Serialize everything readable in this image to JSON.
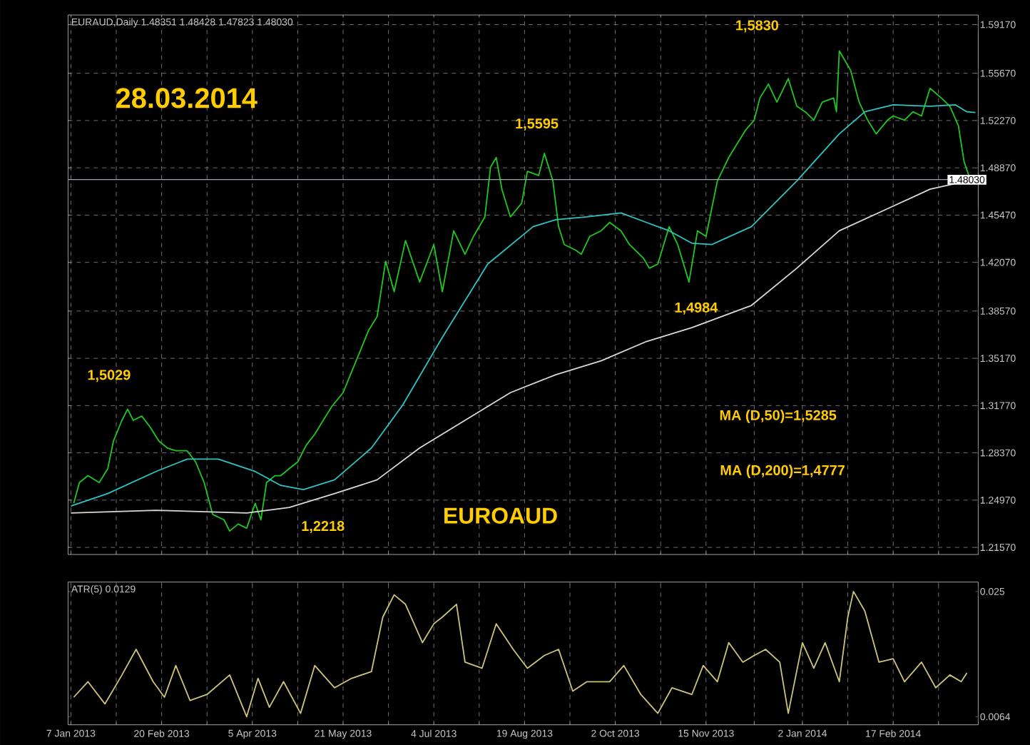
{
  "chart_data": [
    {
      "type": "line",
      "title": "EURAUD,Daily  1.48351 1.48428 1.47823 1.48030",
      "series": [
        {
          "color": "#1ec81e",
          "x": [
            "2013-01-08",
            "2013-01-10",
            "2013-01-15",
            "2013-01-21",
            "2013-01-24",
            "2013-01-28",
            "2013-01-31",
            "2013-02-04",
            "2013-02-06",
            "2013-02-11",
            "2013-02-14",
            "2013-02-19",
            "2013-02-22",
            "2013-02-27",
            "2013-03-05",
            "2013-03-08",
            "2013-03-13",
            "2013-03-18",
            "2013-03-22",
            "2013-03-26",
            "2013-03-29",
            "2013-04-03",
            "2013-04-08",
            "2013-04-10",
            "2013-04-12",
            "2013-04-17",
            "2013-04-19",
            "2013-04-24",
            "2013-04-29",
            "2013-05-02",
            "2013-05-07",
            "2013-05-10",
            "2013-05-15",
            "2013-05-21",
            "2013-05-24",
            "2013-05-29",
            "2013-06-03",
            "2013-06-06",
            "2013-06-11",
            "2013-06-14",
            "2013-06-20",
            "2013-06-27",
            "2013-07-04",
            "2013-07-09",
            "2013-07-15",
            "2013-07-19",
            "2013-07-24",
            "2013-07-30",
            "2013-08-01",
            "2013-08-05",
            "2013-08-07",
            "2013-08-12",
            "2013-08-16",
            "2013-08-20",
            "2013-08-26",
            "2013-08-28",
            "2013-09-02",
            "2013-09-04",
            "2013-09-06",
            "2013-09-12",
            "2013-09-16",
            "2013-09-19",
            "2013-09-25",
            "2013-09-30",
            "2013-10-04",
            "2013-10-09",
            "2013-10-16",
            "2013-10-18",
            "2013-10-23",
            "2013-10-29",
            "2013-11-01",
            "2013-11-07",
            "2013-11-12",
            "2013-11-15",
            "2013-11-21",
            "2013-11-27",
            "2013-12-02",
            "2013-12-05",
            "2013-12-10",
            "2013-12-12",
            "2013-12-17",
            "2013-12-20",
            "2013-12-26",
            "2013-12-31",
            "2014-01-03",
            "2014-01-08",
            "2014-01-13",
            "2014-01-17",
            "2014-01-20",
            "2014-01-21",
            "2014-01-27",
            "2014-01-30",
            "2014-02-04",
            "2014-02-07",
            "2014-02-13",
            "2014-02-17",
            "2014-02-21",
            "2014-02-26",
            "2014-03-03",
            "2014-03-06",
            "2014-03-12",
            "2014-03-17",
            "2014-03-20",
            "2014-03-24",
            "2014-03-26",
            "2014-03-28"
          ],
          "values": [
            1.2474,
            1.2623,
            1.2673,
            1.2623,
            1.2723,
            1.2922,
            1.3071,
            1.3151,
            1.3071,
            1.3101,
            1.3021,
            1.2922,
            1.2872,
            1.2852,
            1.2852,
            1.2772,
            1.2623,
            1.2394,
            1.2355,
            1.2275,
            1.2325,
            1.2295,
            1.2474,
            1.2355,
            1.2623,
            1.2673,
            1.2673,
            1.2723,
            1.2772,
            1.2892,
            1.2971,
            1.3071,
            1.317,
            1.327,
            1.3419,
            1.3568,
            1.3718,
            1.3817,
            1.4215,
            1.3996,
            1.4364,
            1.4066,
            1.4335,
            1.3996,
            1.4434,
            1.4265,
            1.4394,
            1.4534,
            1.4892,
            1.4961,
            1.4733,
            1.4534,
            1.4633,
            1.4862,
            1.4832,
            1.4991,
            1.4792,
            1.4464,
            1.4335,
            1.4295,
            1.4265,
            1.4394,
            1.4434,
            1.4494,
            1.4434,
            1.4335,
            1.4235,
            1.4165,
            1.4195,
            1.4464,
            1.4335,
            1.4066,
            1.4434,
            1.4394,
            1.4792,
            1.4961,
            1.5061,
            1.516,
            1.523,
            1.5389,
            1.5489,
            1.5359,
            1.5529,
            1.533,
            1.529,
            1.523,
            1.5359,
            1.5389,
            1.529,
            1.5728,
            1.5588,
            1.5359,
            1.523,
            1.5131,
            1.523,
            1.526,
            1.523,
            1.529,
            1.526,
            1.5459,
            1.5389,
            1.533,
            1.519,
            1.4932,
            1.4812,
            1.4803
          ]
        },
        {
          "color": "#2ec4c4",
          "x": [
            "2013-01-07",
            "2013-01-24",
            "2013-02-18",
            "2013-03-05",
            "2013-03-20",
            "2013-04-08",
            "2013-04-19",
            "2013-05-01",
            "2013-05-16",
            "2013-06-04",
            "2013-06-19",
            "2013-07-09",
            "2013-07-31",
            "2013-08-22",
            "2013-09-03",
            "2013-09-18",
            "2013-10-04",
            "2013-10-17",
            "2013-10-29",
            "2013-11-08",
            "2013-11-19",
            "2013-12-09",
            "2013-12-31",
            "2014-01-21",
            "2014-02-03",
            "2014-02-17",
            "2014-03-06",
            "2014-03-19",
            "2014-03-25",
            "2014-03-28"
          ],
          "values": [
            1.2454,
            1.2544,
            1.2703,
            1.2792,
            1.2792,
            1.2703,
            1.2603,
            1.2573,
            1.2643,
            1.2872,
            1.318,
            1.3668,
            1.4195,
            1.4464,
            1.4514,
            1.4534,
            1.4563,
            1.4494,
            1.4434,
            1.4345,
            1.4335,
            1.4464,
            1.4792,
            1.5131,
            1.529,
            1.534,
            1.533,
            1.534,
            1.529,
            1.5285
          ]
        },
        {
          "color": "#d8d8d8",
          "x": [
            "2013-01-07",
            "2013-02-18",
            "2013-04-03",
            "2013-04-24",
            "2013-05-16",
            "2013-06-06",
            "2013-06-27",
            "2013-07-19",
            "2013-08-12",
            "2013-09-03",
            "2013-09-25",
            "2013-10-17",
            "2013-11-08",
            "2013-12-09",
            "2013-12-31",
            "2014-01-21",
            "2014-02-13",
            "2014-03-06",
            "2014-03-25",
            "2014-03-28"
          ],
          "values": [
            1.2404,
            1.2424,
            1.2404,
            1.2444,
            1.2544,
            1.2643,
            1.2872,
            1.3071,
            1.327,
            1.3399,
            1.3499,
            1.3638,
            1.3738,
            1.3897,
            1.4165,
            1.4434,
            1.4593,
            1.4733,
            1.4792,
            1.4777
          ]
        }
      ],
      "xlim": [
        "2013-01-04",
        "2014-03-31"
      ],
      "xticks": [
        {
          "value": "2013-01-07",
          "label": null
        },
        {
          "value": "2013-01-29",
          "label": null
        },
        {
          "value": "2013-02-20",
          "label": null
        },
        {
          "value": "2013-03-14",
          "label": null
        },
        {
          "value": "2013-04-05",
          "label": null
        },
        {
          "value": "2013-04-29",
          "label": null
        },
        {
          "value": "2013-05-21",
          "label": null
        },
        {
          "value": "2013-06-12",
          "label": null
        },
        {
          "value": "2013-07-04",
          "label": null
        },
        {
          "value": "2013-07-26",
          "label": null
        },
        {
          "value": "2013-08-19",
          "label": null
        },
        {
          "value": "2013-09-10",
          "label": null
        },
        {
          "value": "2013-10-02",
          "label": null
        },
        {
          "value": "2013-10-24",
          "label": null
        },
        {
          "value": "2013-11-15",
          "label": null
        },
        {
          "value": "2013-12-10",
          "label": null
        },
        {
          "value": "2014-01-02",
          "label": null
        },
        {
          "value": "2014-01-24",
          "label": null
        },
        {
          "value": "2014-02-17",
          "label": null
        },
        {
          "value": "2014-03-11",
          "label": null
        }
      ],
      "ylim": [
        1.2106,
        1.5986
      ],
      "yticks": [
        {
          "value": 1.2157,
          "label": "1.21570"
        },
        {
          "value": 1.2497,
          "label": "1.24970"
        },
        {
          "value": 1.2837,
          "label": "1.28370"
        },
        {
          "value": 1.3177,
          "label": "1.31770"
        },
        {
          "value": 1.3517,
          "label": "1.35170"
        },
        {
          "value": 1.3857,
          "label": "1.38570"
        },
        {
          "value": 1.4207,
          "label": "1.42070"
        },
        {
          "value": 1.4547,
          "label": "1.45470"
        },
        {
          "value": 1.4887,
          "label": "1.48870"
        },
        {
          "value": 1.5227,
          "label": "1.52270"
        },
        {
          "value": 1.5567,
          "label": "1.55670"
        },
        {
          "value": 1.5917,
          "label": "1.59170"
        }
      ],
      "ref_lines": [
        {
          "axis": "y",
          "value": 1.4803,
          "label": "1.48030",
          "color": "#9aa6b0"
        }
      ],
      "annotations": [
        "28.03.2014",
        "1,5029",
        "1,2218",
        "1,5595",
        "1,4984",
        "1,5830",
        "EUROAUD",
        "MA (D,50)=1,5285",
        "MA (D,200)=1,4777"
      ],
      "grid": true,
      "tick_labels": "y",
      "line_style": "solid"
    },
    {
      "type": "line",
      "title": "ATR(5) 0.0129",
      "series": [
        {
          "color": "#cdc47c",
          "x": [
            "2013-01-08",
            "2013-01-15",
            "2013-01-23",
            "2013-01-31",
            "2013-02-07",
            "2013-02-15",
            "2013-02-21",
            "2013-02-27",
            "2013-03-06",
            "2013-03-14",
            "2013-03-26",
            "2013-04-03",
            "2013-04-09",
            "2013-04-15",
            "2013-04-22",
            "2013-04-30",
            "2013-05-07",
            "2013-05-16",
            "2013-05-24",
            "2013-06-04",
            "2013-06-10",
            "2013-06-14",
            "2013-06-20",
            "2013-06-28",
            "2013-07-04",
            "2013-07-09",
            "2013-07-16",
            "2013-07-19",
            "2013-07-29",
            "2013-08-05",
            "2013-08-13",
            "2013-08-20",
            "2013-08-28",
            "2013-09-04",
            "2013-09-11",
            "2013-09-18",
            "2013-09-30",
            "2013-10-07",
            "2013-10-15",
            "2013-10-23",
            "2013-10-30",
            "2013-11-08",
            "2013-11-14",
            "2013-11-21",
            "2013-11-27",
            "2013-12-04",
            "2013-12-10",
            "2013-12-16",
            "2013-12-23",
            "2013-12-26",
            "2014-01-02",
            "2014-01-08",
            "2014-01-14",
            "2014-01-21",
            "2014-01-24",
            "2014-01-28",
            "2014-02-03",
            "2014-02-10",
            "2014-02-17",
            "2014-02-21",
            "2014-03-03",
            "2014-03-10",
            "2014-03-17",
            "2014-03-21",
            "2014-03-25"
          ],
          "values": [
            0.0093,
            0.0116,
            0.0083,
            0.0126,
            0.0164,
            0.0116,
            0.0093,
            0.014,
            0.0088,
            0.0097,
            0.0126,
            0.0064,
            0.0121,
            0.0078,
            0.0116,
            0.0069,
            0.014,
            0.0107,
            0.0121,
            0.0131,
            0.0212,
            0.0245,
            0.0231,
            0.0174,
            0.0202,
            0.0212,
            0.0231,
            0.0145,
            0.0136,
            0.0202,
            0.0164,
            0.0136,
            0.0155,
            0.0164,
            0.0102,
            0.0116,
            0.0116,
            0.014,
            0.0097,
            0.0069,
            0.0107,
            0.0097,
            0.014,
            0.0116,
            0.0174,
            0.0145,
            0.0155,
            0.0164,
            0.0145,
            0.0069,
            0.0174,
            0.0136,
            0.0174,
            0.0116,
            0.0212,
            0.025,
            0.0221,
            0.0145,
            0.015,
            0.0116,
            0.0145,
            0.0107,
            0.0126,
            0.0116,
            0.0129
          ]
        }
      ],
      "xlim": [
        "2013-01-04",
        "2014-03-31"
      ],
      "xticks": [
        {
          "value": "2013-01-07",
          "label": "7 Jan 2013"
        },
        {
          "value": "2013-01-29",
          "label": null
        },
        {
          "value": "2013-02-20",
          "label": "20 Feb 2013"
        },
        {
          "value": "2013-03-14",
          "label": null
        },
        {
          "value": "2013-04-05",
          "label": "5 Apr 2013"
        },
        {
          "value": "2013-04-29",
          "label": null
        },
        {
          "value": "2013-05-21",
          "label": "21 May 2013"
        },
        {
          "value": "2013-06-12",
          "label": null
        },
        {
          "value": "2013-07-04",
          "label": "4 Jul 2013"
        },
        {
          "value": "2013-07-26",
          "label": null
        },
        {
          "value": "2013-08-19",
          "label": "19 Aug 2013"
        },
        {
          "value": "2013-09-10",
          "label": null
        },
        {
          "value": "2013-10-02",
          "label": "2 Oct 2013"
        },
        {
          "value": "2013-10-24",
          "label": null
        },
        {
          "value": "2013-11-15",
          "label": "15 Nov 2013"
        },
        {
          "value": "2013-12-10",
          "label": null
        },
        {
          "value": "2014-01-02",
          "label": "2 Jan 2014"
        },
        {
          "value": "2014-01-24",
          "label": null
        },
        {
          "value": "2014-02-17",
          "label": "17 Feb 2014"
        },
        {
          "value": "2014-03-11",
          "label": null
        }
      ],
      "ylim": [
        0.0052,
        0.0264
      ],
      "yticks": [
        0.0064,
        0.025
      ],
      "grid": "x",
      "line_style": "solid"
    }
  ]
}
